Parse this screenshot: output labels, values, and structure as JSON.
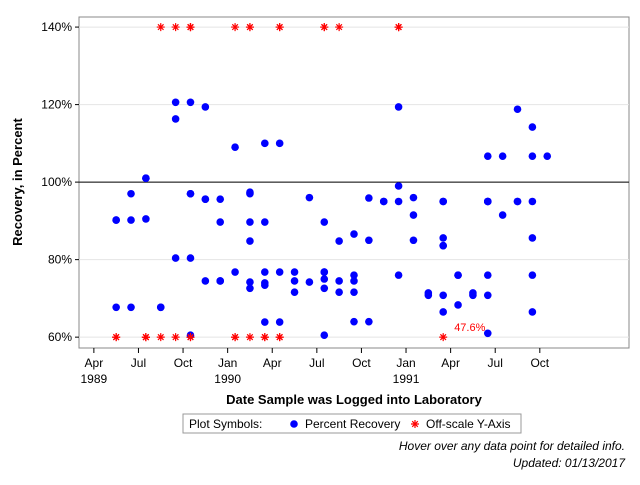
{
  "chart_data": {
    "type": "scatter",
    "xlabel": "Date Sample was Logged into Laboratory",
    "ylabel": "Recovery, in Percent",
    "xlim": [
      "1989-03",
      "1992-04"
    ],
    "ylim": [
      57.2,
      142.6
    ],
    "xticks": [
      {
        "value": "1989-04",
        "label": "Apr"
      },
      {
        "value": "1989-07",
        "label": "Jul"
      },
      {
        "value": "1989-10",
        "label": "Oct"
      },
      {
        "value": "1990-01",
        "label": "Jan"
      },
      {
        "value": "1990-04",
        "label": "Apr"
      },
      {
        "value": "1990-07",
        "label": "Jul"
      },
      {
        "value": "1990-10",
        "label": "Oct"
      },
      {
        "value": "1991-01",
        "label": "Jan"
      },
      {
        "value": "1991-04",
        "label": "Apr"
      },
      {
        "value": "1991-07",
        "label": "Jul"
      },
      {
        "value": "1991-10",
        "label": "Oct"
      }
    ],
    "xtick_years": [
      {
        "value": "1989-04",
        "label": "1989"
      },
      {
        "value": "1990-01",
        "label": "1990"
      },
      {
        "value": "1991-01",
        "label": "1991"
      }
    ],
    "yticks": [
      {
        "value": 60,
        "label": "60%"
      },
      {
        "value": 80,
        "label": "80%"
      },
      {
        "value": 100,
        "label": "100%"
      },
      {
        "value": 120,
        "label": "120%"
      },
      {
        "value": 140,
        "label": "140%"
      }
    ],
    "refline": 100,
    "legend_title": "Plot Symbols:",
    "series": [
      {
        "name": "Percent Recovery",
        "color": "#0000ff",
        "marker": "dot",
        "x": [
          "1989-05",
          "1989-05",
          "1989-06",
          "1989-05",
          "1989-06",
          "1989-06",
          "1989-07",
          "1989-07",
          "1989-07",
          "1989-08",
          "1989-08",
          "1989-09",
          "1989-10",
          "1989-09",
          "1989-10",
          "1989-09",
          "1989-10",
          "1989-10",
          "1989-11",
          "1989-11",
          "1989-12",
          "1989-11",
          "1989-11",
          "1989-12",
          "1989-12",
          "1989-12",
          "1990-01",
          "1989-10",
          "1990-01",
          "1990-02",
          "1990-02",
          "1990-02",
          "1990-02",
          "1990-02",
          "1990-02",
          "1990-03",
          "1990-03",
          "1990-03",
          "1990-03",
          "1990-04",
          "1990-03",
          "1990-04",
          "1990-03",
          "1990-04",
          "1990-05",
          "1990-05",
          "1990-05",
          "1990-06",
          "1990-06",
          "1990-07",
          "1990-07",
          "1990-07",
          "1990-07",
          "1990-07",
          "1990-08",
          "1990-07",
          "1990-08",
          "1990-08",
          "1990-09",
          "1990-09",
          "1990-09",
          "1990-09",
          "1990-09",
          "1990-10",
          "1990-10",
          "1990-10",
          "1990-11",
          "1990-11",
          "1990-12",
          "1990-12",
          "1990-12",
          "1990-12",
          "1991-01",
          "1991-01",
          "1991-01",
          "1991-02",
          "1991-02",
          "1991-03",
          "1991-03",
          "1991-03",
          "1991-03",
          "1991-03",
          "1991-03",
          "1991-03",
          "1991-04",
          "1991-04",
          "1991-04",
          "1991-05",
          "1991-05",
          "1991-06",
          "1991-06",
          "1991-06",
          "1991-06",
          "1991-06",
          "1991-06",
          "1991-06",
          "1991-07",
          "1991-07",
          "1991-08",
          "1991-08",
          "1991-08",
          "1991-09",
          "1991-09",
          "1991-09",
          "1991-09",
          "1991-09",
          "1991-09",
          "1991-10"
        ],
        "values": [
          90.2,
          90.2,
          90.2,
          67.7,
          67.7,
          97,
          101,
          101,
          90.5,
          67.7,
          67.7,
          80.4,
          80.4,
          120.6,
          120.6,
          116.3,
          97,
          97,
          95.6,
          95.6,
          95.6,
          119.4,
          74.5,
          74.5,
          74.5,
          89.7,
          76.8,
          60.5,
          109,
          97,
          97.4,
          89.7,
          84.8,
          72.6,
          74.2,
          73.4,
          74,
          89.7,
          76.8,
          76.8,
          110,
          110,
          63.9,
          63.9,
          76.8,
          74.5,
          71.6,
          74.2,
          96,
          89.7,
          76.8,
          75,
          76.8,
          72.6,
          84.8,
          60.5,
          71.6,
          74.5,
          74.5,
          71.6,
          76,
          86.6,
          64,
          64,
          95.9,
          85,
          95,
          95,
          99,
          95,
          76,
          119.4,
          91.5,
          85,
          96,
          70.8,
          71.4,
          70.8,
          95,
          95,
          85.6,
          83.6,
          83.6,
          66.5,
          76,
          76,
          68.3,
          70.8,
          71.4,
          70.8,
          95,
          95,
          95,
          106.7,
          61,
          76,
          91.5,
          106.7,
          95,
          95,
          118.8,
          114.2,
          95,
          85.6,
          76,
          66.5,
          106.7,
          106.7
        ]
      },
      {
        "name": "Off-scale Y-Axis",
        "color": "#ff0000",
        "marker": "asterisk",
        "x": [
          "1989-08",
          "1989-09",
          "1989-10",
          "1989-10",
          "1989-10",
          "1990-01",
          "1990-02",
          "1990-02",
          "1990-04",
          "1990-04",
          "1990-07",
          "1990-07",
          "1990-08",
          "1990-12",
          "1990-12",
          "1990-12",
          "1989-05",
          "1989-05",
          "1989-07",
          "1989-07",
          "1989-07",
          "1989-08",
          "1989-09",
          "1989-10",
          "1989-10",
          "1990-01",
          "1990-01",
          "1990-02",
          "1990-03",
          "1990-03",
          "1990-04",
          "1990-04",
          "1991-03"
        ],
        "values": [
          140,
          140,
          140,
          140,
          140,
          140,
          140,
          140,
          140,
          140,
          140,
          140,
          140,
          140,
          140,
          140,
          60,
          60,
          60,
          60,
          60,
          60,
          60,
          60,
          60,
          60,
          60,
          60,
          60,
          60,
          60,
          60,
          60
        ]
      }
    ],
    "annotations": [
      {
        "text": "47.6%",
        "x": "1991-03",
        "y": 60
      }
    ],
    "footer": [
      "Hover over any data point for detailed info.",
      "Updated: 01/13/2017"
    ]
  }
}
